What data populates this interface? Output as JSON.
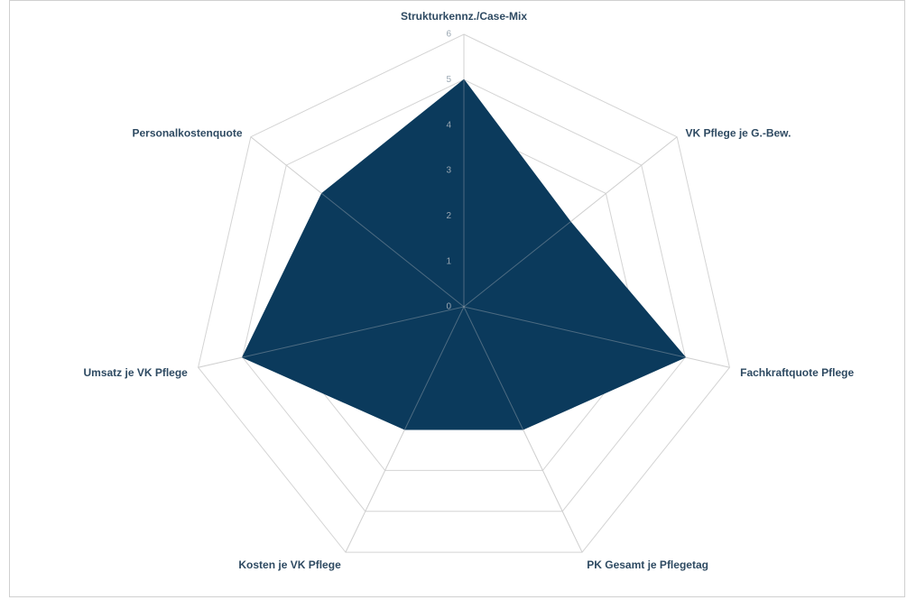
{
  "chart_data": {
    "type": "radar",
    "categories": [
      "Strukturkennz./Case-Mix",
      "VK Pflege je G.-Bew.",
      "Fachkraftquote Pflege",
      "PK Gesamt je Pflegetag",
      "Kosten je VK Pflege",
      "Umsatz je VK Pflege",
      "Personalkostenquote"
    ],
    "values": [
      5,
      3,
      5,
      3,
      3,
      5,
      4
    ],
    "color": "#0b3a5c",
    "ylim": [
      0,
      6
    ],
    "yticks": [
      0,
      1,
      2,
      3,
      4,
      5,
      6
    ],
    "grid": true
  }
}
